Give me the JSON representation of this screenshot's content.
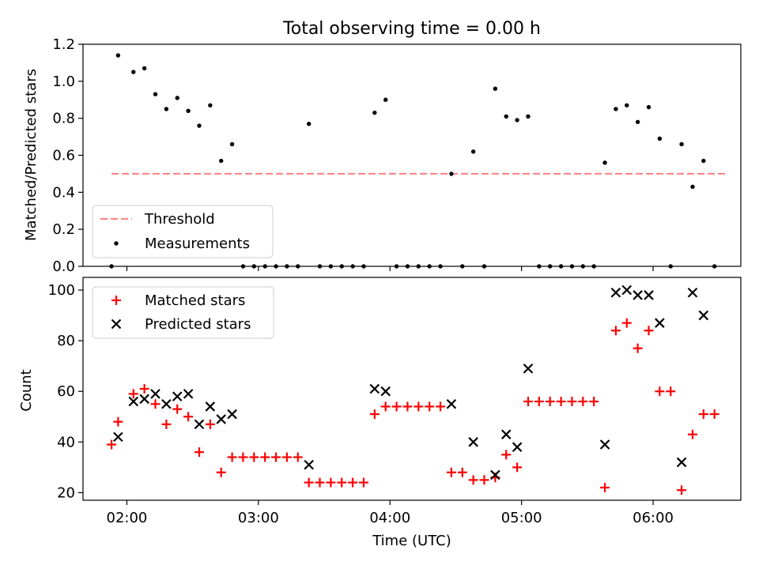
{
  "chart_data": [
    {
      "type": "scatter",
      "title": "Total observing time = 0.00 h",
      "ylabel": "Matched/Predicted stars",
      "xlabel": "",
      "xlim": [
        "01:40",
        "06:40"
      ],
      "ylim": [
        0,
        1.2
      ],
      "yticks": [
        0.0,
        0.2,
        0.4,
        0.6,
        0.8,
        1.0,
        1.2
      ],
      "ytick_labels": [
        "0.0",
        "0.2",
        "0.4",
        "0.6",
        "0.8",
        "1.0",
        "1.2"
      ],
      "xticks": [
        "02:00",
        "03:00",
        "04:00",
        "05:00",
        "06:00"
      ],
      "grid": false,
      "legend_position": "lower-left",
      "threshold": {
        "name": "Threshold",
        "value": 0.5,
        "x_range": [
          "01:53",
          "06:33"
        ],
        "color": "#ff7f7f"
      },
      "series": [
        {
          "name": "Measurements",
          "marker": "dot",
          "color": "#000000",
          "points": [
            [
              "01:53",
              0.0
            ],
            [
              "01:56",
              1.14
            ],
            [
              "02:03",
              1.05
            ],
            [
              "02:08",
              1.07
            ],
            [
              "02:13",
              0.93
            ],
            [
              "02:18",
              0.85
            ],
            [
              "02:23",
              0.91
            ],
            [
              "02:28",
              0.84
            ],
            [
              "02:33",
              0.76
            ],
            [
              "02:38",
              0.87
            ],
            [
              "02:43",
              0.57
            ],
            [
              "02:48",
              0.66
            ],
            [
              "02:53",
              0.0
            ],
            [
              "02:58",
              0.0
            ],
            [
              "03:03",
              0.0
            ],
            [
              "03:08",
              0.0
            ],
            [
              "03:13",
              0.0
            ],
            [
              "03:18",
              0.0
            ],
            [
              "03:23",
              0.77
            ],
            [
              "03:28",
              0.0
            ],
            [
              "03:33",
              0.0
            ],
            [
              "03:38",
              0.0
            ],
            [
              "03:43",
              0.0
            ],
            [
              "03:48",
              0.0
            ],
            [
              "03:53",
              0.83
            ],
            [
              "03:58",
              0.9
            ],
            [
              "04:03",
              0.0
            ],
            [
              "04:08",
              0.0
            ],
            [
              "04:13",
              0.0
            ],
            [
              "04:18",
              0.0
            ],
            [
              "04:23",
              0.0
            ],
            [
              "04:28",
              0.5
            ],
            [
              "04:33",
              0.0
            ],
            [
              "04:38",
              0.62
            ],
            [
              "04:43",
              0.0
            ],
            [
              "04:48",
              0.96
            ],
            [
              "04:53",
              0.81
            ],
            [
              "04:58",
              0.79
            ],
            [
              "05:03",
              0.81
            ],
            [
              "05:08",
              0.0
            ],
            [
              "05:13",
              0.0
            ],
            [
              "05:18",
              0.0
            ],
            [
              "05:23",
              0.0
            ],
            [
              "05:28",
              0.0
            ],
            [
              "05:33",
              0.0
            ],
            [
              "05:38",
              0.56
            ],
            [
              "05:43",
              0.85
            ],
            [
              "05:48",
              0.87
            ],
            [
              "05:53",
              0.78
            ],
            [
              "05:58",
              0.86
            ],
            [
              "06:03",
              0.69
            ],
            [
              "06:08",
              0.0
            ],
            [
              "06:13",
              0.66
            ],
            [
              "06:18",
              0.43
            ],
            [
              "06:23",
              0.57
            ],
            [
              "06:28",
              0.0
            ]
          ]
        }
      ]
    },
    {
      "type": "scatter",
      "title": "",
      "xlabel": "Time (UTC)",
      "ylabel": "Count",
      "xlim": [
        "01:40",
        "06:40"
      ],
      "ylim": [
        17,
        105
      ],
      "yticks": [
        20,
        40,
        60,
        80,
        100
      ],
      "ytick_labels": [
        "20",
        "40",
        "60",
        "80",
        "100"
      ],
      "xticks": [
        "02:00",
        "03:00",
        "04:00",
        "05:00",
        "06:00"
      ],
      "xtick_labels": [
        "02:00",
        "03:00",
        "04:00",
        "05:00",
        "06:00"
      ],
      "grid": false,
      "legend_position": "upper-left",
      "series": [
        {
          "name": "Matched stars",
          "marker": "plus",
          "color": "#ff0000",
          "points": [
            [
              "01:53",
              39
            ],
            [
              "01:56",
              48
            ],
            [
              "02:03",
              59
            ],
            [
              "02:08",
              61
            ],
            [
              "02:13",
              55
            ],
            [
              "02:18",
              47
            ],
            [
              "02:23",
              53
            ],
            [
              "02:28",
              50
            ],
            [
              "02:33",
              36
            ],
            [
              "02:38",
              47
            ],
            [
              "02:43",
              28
            ],
            [
              "02:48",
              34
            ],
            [
              "02:53",
              34
            ],
            [
              "02:58",
              34
            ],
            [
              "03:03",
              34
            ],
            [
              "03:08",
              34
            ],
            [
              "03:13",
              34
            ],
            [
              "03:18",
              34
            ],
            [
              "03:23",
              24
            ],
            [
              "03:28",
              24
            ],
            [
              "03:33",
              24
            ],
            [
              "03:38",
              24
            ],
            [
              "03:43",
              24
            ],
            [
              "03:48",
              24
            ],
            [
              "03:53",
              51
            ],
            [
              "03:58",
              54
            ],
            [
              "04:03",
              54
            ],
            [
              "04:08",
              54
            ],
            [
              "04:13",
              54
            ],
            [
              "04:18",
              54
            ],
            [
              "04:23",
              54
            ],
            [
              "04:28",
              28
            ],
            [
              "04:33",
              28
            ],
            [
              "04:38",
              25
            ],
            [
              "04:43",
              25
            ],
            [
              "04:48",
              26
            ],
            [
              "04:53",
              35
            ],
            [
              "04:58",
              30
            ],
            [
              "05:03",
              56
            ],
            [
              "05:08",
              56
            ],
            [
              "05:13",
              56
            ],
            [
              "05:18",
              56
            ],
            [
              "05:23",
              56
            ],
            [
              "05:28",
              56
            ],
            [
              "05:33",
              56
            ],
            [
              "05:38",
              22
            ],
            [
              "05:43",
              84
            ],
            [
              "05:48",
              87
            ],
            [
              "05:53",
              77
            ],
            [
              "05:58",
              84
            ],
            [
              "06:03",
              60
            ],
            [
              "06:08",
              60
            ],
            [
              "06:13",
              21
            ],
            [
              "06:18",
              43
            ],
            [
              "06:23",
              51
            ],
            [
              "06:28",
              51
            ]
          ]
        },
        {
          "name": "Predicted stars",
          "marker": "cross",
          "color": "#000000",
          "points": [
            [
              "01:56",
              42
            ],
            [
              "02:03",
              56
            ],
            [
              "02:08",
              57
            ],
            [
              "02:13",
              59
            ],
            [
              "02:18",
              55
            ],
            [
              "02:23",
              58
            ],
            [
              "02:28",
              59
            ],
            [
              "02:33",
              47
            ],
            [
              "02:38",
              54
            ],
            [
              "02:43",
              49
            ],
            [
              "02:48",
              51
            ],
            [
              "03:23",
              31
            ],
            [
              "03:53",
              61
            ],
            [
              "03:58",
              60
            ],
            [
              "04:28",
              55
            ],
            [
              "04:38",
              40
            ],
            [
              "04:48",
              27
            ],
            [
              "04:53",
              43
            ],
            [
              "04:58",
              38
            ],
            [
              "05:03",
              69
            ],
            [
              "05:38",
              39
            ],
            [
              "05:43",
              99
            ],
            [
              "05:48",
              100
            ],
            [
              "05:53",
              98
            ],
            [
              "05:58",
              98
            ],
            [
              "06:03",
              87
            ],
            [
              "06:13",
              32
            ],
            [
              "06:18",
              99
            ],
            [
              "06:23",
              90
            ]
          ]
        }
      ]
    }
  ]
}
